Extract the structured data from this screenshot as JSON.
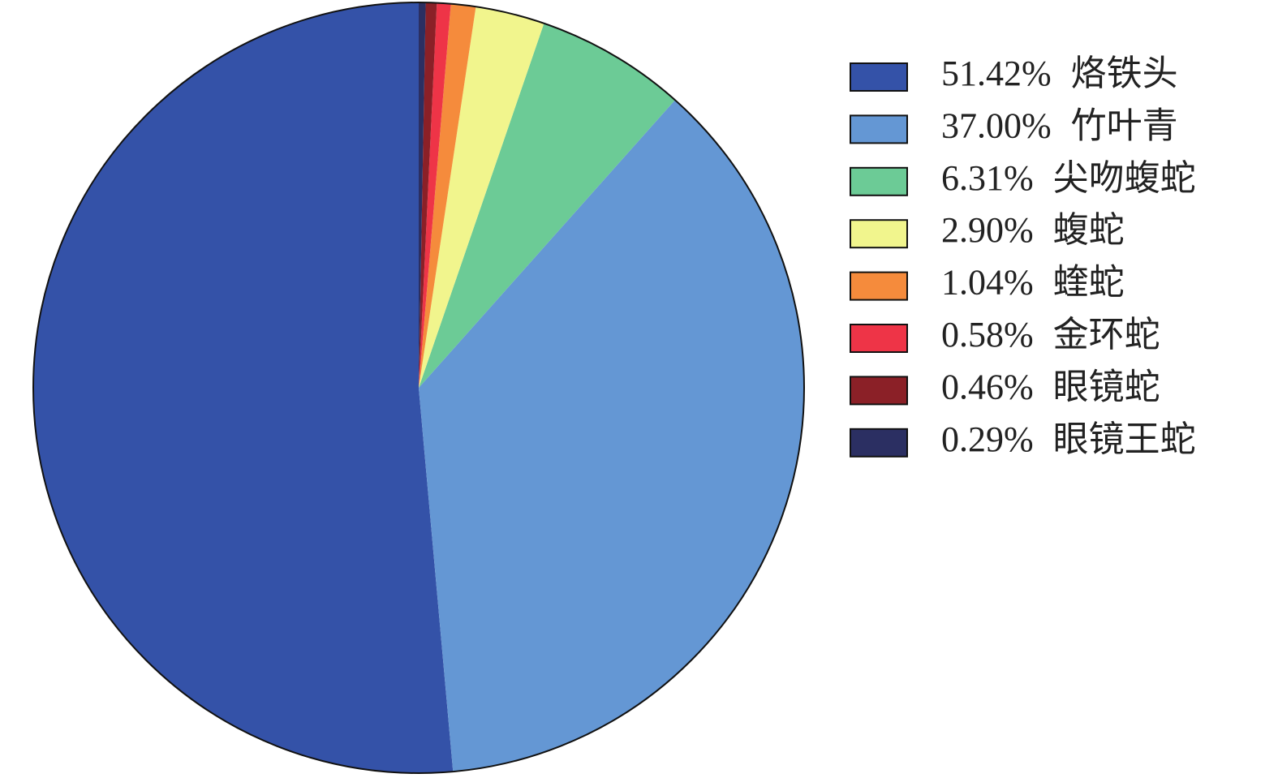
{
  "chart_data": {
    "type": "pie",
    "categories": [
      "烙铁头",
      "竹叶青",
      "尖吻蝮蛇",
      "蝮蛇",
      "蝰蛇",
      "金环蛇",
      "眼镜蛇",
      "眼镜王蛇"
    ],
    "values": [
      51.42,
      37.0,
      6.31,
      2.9,
      1.04,
      0.58,
      0.46,
      0.29
    ],
    "value_labels": [
      "51.42%",
      "37.00%",
      "6.31%",
      "2.90%",
      "1.04%",
      "0.58%",
      "0.46%",
      "0.29%"
    ],
    "colors": [
      "#3452a8",
      "#6497d4",
      "#6ccb96",
      "#f1f58d",
      "#f58b3c",
      "#ee3447",
      "#8b2027",
      "#2b2f62"
    ],
    "direction": "counterclockwise",
    "legend": "right"
  }
}
